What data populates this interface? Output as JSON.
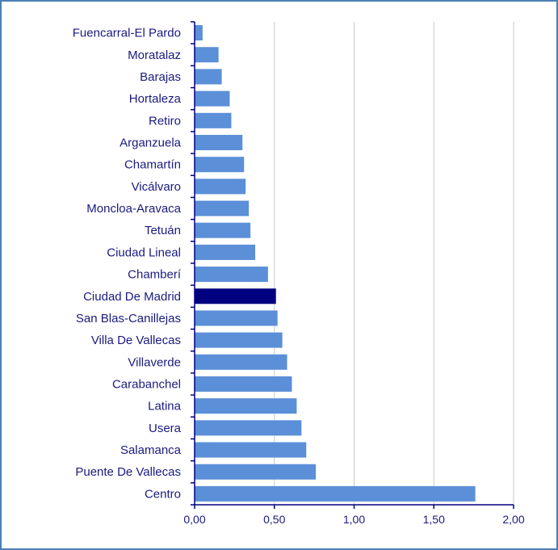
{
  "chart_data": {
    "type": "bar",
    "orientation": "horizontal",
    "categories": [
      "Fuencarral-El Pardo",
      "Moratalaz",
      "Barajas",
      "Hortaleza",
      "Retiro",
      "Arganzuela",
      "Chamartín",
      "Vicálvaro",
      "Moncloa-Aravaca",
      "Tetuán",
      "Ciudad Lineal",
      "Chamberí",
      "Ciudad De Madrid",
      "San Blas-Canillejas",
      "Villa De Vallecas",
      "Villaverde",
      "Carabanchel",
      "Latina",
      "Usera",
      "Salamanca",
      "Puente De Vallecas",
      "Centro"
    ],
    "values": [
      0.05,
      0.15,
      0.17,
      0.22,
      0.23,
      0.3,
      0.31,
      0.32,
      0.34,
      0.35,
      0.38,
      0.46,
      0.51,
      0.52,
      0.55,
      0.58,
      0.61,
      0.64,
      0.67,
      0.7,
      0.76,
      1.76
    ],
    "highlight": "Ciudad De Madrid",
    "xlim": [
      0,
      2
    ],
    "xticks": [
      "0,00",
      "0,50",
      "1,00",
      "1,50",
      "2,00"
    ],
    "xtick_values": [
      0,
      0.5,
      1,
      1.5,
      2
    ],
    "grid": "vertical",
    "title": "",
    "xlabel": "",
    "ylabel": "",
    "colors": {
      "bar": "#5b8fd8",
      "highlight": "#000080",
      "grid": "#c8c8c8",
      "axis": "#000080",
      "frame": "#4a7fb5",
      "text": "#1a1a80"
    }
  }
}
